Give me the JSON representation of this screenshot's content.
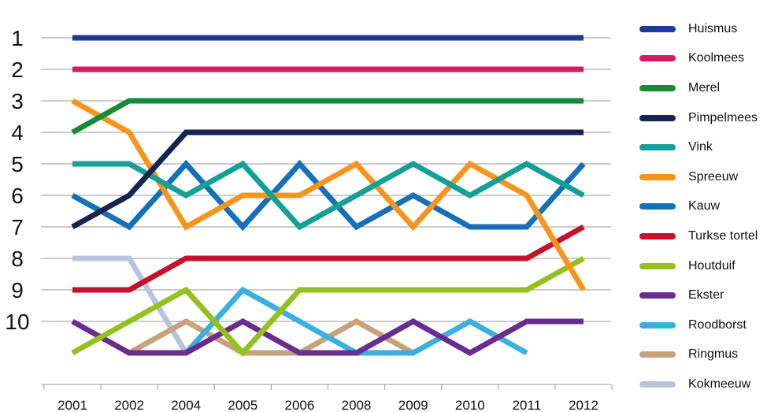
{
  "chart_data": {
    "type": "line",
    "categories": [
      "2001",
      "2002",
      "2004",
      "2005",
      "2006",
      "2008",
      "2009",
      "2010",
      "2011",
      "2012"
    ],
    "y_ticks": [
      "1",
      "2",
      "3",
      "4",
      "5",
      "6",
      "7",
      "8",
      "9",
      "10"
    ],
    "ylim": [
      1,
      11
    ],
    "y_inverted": true,
    "grid": "horizontal",
    "legend_position": "right",
    "title": "",
    "xlabel": "",
    "ylabel": "",
    "series": [
      {
        "name": "Huismus",
        "color": "#1f3a93",
        "values": [
          1,
          1,
          1,
          1,
          1,
          1,
          1,
          1,
          1,
          1
        ]
      },
      {
        "name": "Koolmees",
        "color": "#d81b60",
        "values": [
          2,
          2,
          2,
          2,
          2,
          2,
          2,
          2,
          2,
          2
        ]
      },
      {
        "name": "Merel",
        "color": "#178a3a",
        "values": [
          4,
          3,
          3,
          3,
          3,
          3,
          3,
          3,
          3,
          3
        ]
      },
      {
        "name": "Pimpelmees",
        "color": "#16244f",
        "values": [
          7,
          6,
          4,
          4,
          4,
          4,
          4,
          4,
          4,
          4
        ]
      },
      {
        "name": "Vink",
        "color": "#14a095",
        "values": [
          5,
          5,
          6,
          5,
          7,
          6,
          5,
          6,
          5,
          6
        ]
      },
      {
        "name": "Spreeuw",
        "color": "#f7941d",
        "values": [
          3,
          4,
          7,
          6,
          6,
          5,
          7,
          5,
          6,
          9
        ]
      },
      {
        "name": "Kauw",
        "color": "#1570b8",
        "values": [
          6,
          7,
          5,
          7,
          5,
          7,
          6,
          7,
          7,
          5
        ]
      },
      {
        "name": "Turkse tortel",
        "color": "#c8102e",
        "values": [
          9,
          9,
          8,
          8,
          8,
          8,
          8,
          8,
          8,
          7
        ]
      },
      {
        "name": "Houtduif",
        "color": "#95c11f",
        "values": [
          11,
          10,
          9,
          11,
          9,
          9,
          9,
          9,
          9,
          8
        ]
      },
      {
        "name": "Ekster",
        "color": "#6a2c8e",
        "values": [
          10,
          11,
          11,
          10,
          11,
          11,
          10,
          11,
          10,
          10
        ]
      },
      {
        "name": "Roodborst",
        "color": "#3bb0e0",
        "values": [
          null,
          null,
          11,
          9,
          10,
          11,
          11,
          10,
          11,
          null
        ]
      },
      {
        "name": "Ringmus",
        "color": "#c8a27a",
        "values": [
          null,
          11,
          10,
          11,
          11,
          10,
          11,
          null,
          null,
          null
        ]
      },
      {
        "name": "Kokmeeuw",
        "color": "#b9c4dc",
        "values": [
          8,
          8,
          11,
          null,
          null,
          null,
          null,
          null,
          null,
          null
        ]
      }
    ]
  }
}
